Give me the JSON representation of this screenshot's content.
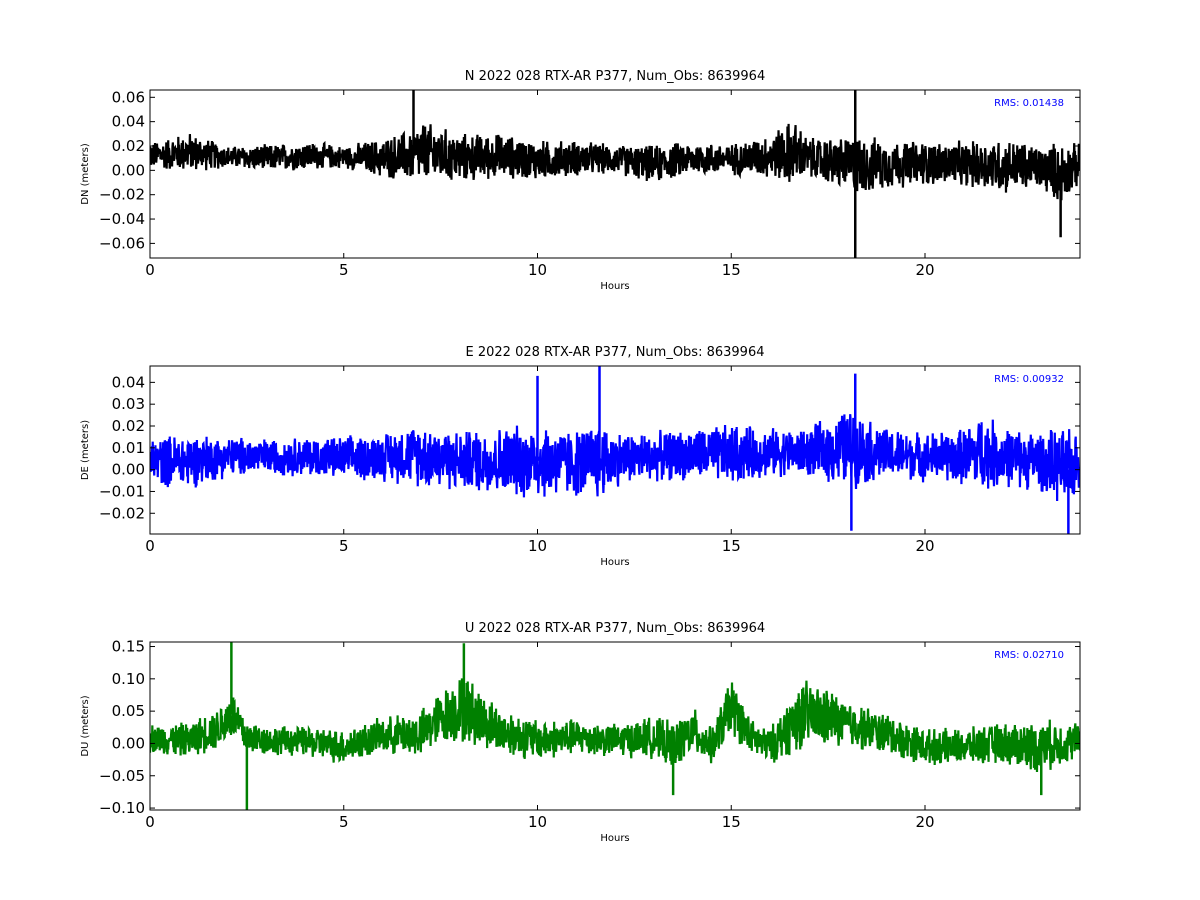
{
  "chart_data": [
    {
      "type": "line",
      "title": "N 2022 028 RTX-AR  P377, Num_Obs: 8639964",
      "xlabel": "Hours",
      "ylabel": "DN (meters)",
      "xlim": [
        0,
        24
      ],
      "ylim": [
        -0.072,
        0.066
      ],
      "xticks": [
        0,
        5,
        10,
        15,
        20
      ],
      "xtick_labels": [
        "0",
        "5",
        "10",
        "15",
        "20"
      ],
      "yticks": [
        -0.06,
        -0.04,
        -0.02,
        0.0,
        0.02,
        0.04,
        0.06
      ],
      "ytick_labels": [
        "−0.06",
        "−0.04",
        "−0.02",
        "0.00",
        "0.02",
        "0.04",
        "0.06"
      ],
      "series_color": "#000000",
      "annotation": "RMS:  0.01438",
      "annotation_color": "#0000ff",
      "grid": false,
      "series": [
        {
          "x": [
            0,
            1,
            2,
            3,
            4,
            5,
            6,
            6.8,
            7,
            8,
            9,
            10,
            11,
            12,
            13,
            14,
            15,
            16,
            16.6,
            17,
            18,
            18.2,
            19,
            20,
            21,
            22,
            23,
            23.5,
            24
          ],
          "y_center": [
            0.012,
            0.015,
            0.011,
            0.01,
            0.012,
            0.011,
            0.01,
            0.012,
            0.015,
            0.01,
            0.012,
            0.008,
            0.01,
            0.009,
            0.005,
            0.01,
            0.009,
            0.012,
            0.015,
            0.01,
            0.005,
            0.004,
            0.005,
            0.006,
            0.005,
            0.004,
            0.002,
            -0.002,
            0.005
          ],
          "y_amplitude": [
            0.012,
            0.018,
            0.01,
            0.012,
            0.013,
            0.01,
            0.018,
            0.024,
            0.028,
            0.022,
            0.02,
            0.018,
            0.016,
            0.013,
            0.017,
            0.015,
            0.014,
            0.02,
            0.03,
            0.018,
            0.025,
            0.028,
            0.022,
            0.02,
            0.02,
            0.025,
            0.02,
            0.028,
            0.018
          ],
          "spikes": [
            [
              6.8,
              0.066
            ],
            [
              18.2,
              0.066
            ],
            [
              18.2,
              -0.072
            ],
            [
              23.5,
              -0.055
            ]
          ]
        }
      ]
    },
    {
      "type": "line",
      "title": "E 2022 028 RTX-AR  P377, Num_Obs: 8639964",
      "xlabel": "Hours",
      "ylabel": "DE (meters)",
      "xlim": [
        0,
        24
      ],
      "ylim": [
        -0.0295,
        0.0475
      ],
      "xticks": [
        0,
        5,
        10,
        15,
        20
      ],
      "xtick_labels": [
        "0",
        "5",
        "10",
        "15",
        "20"
      ],
      "yticks": [
        -0.02,
        -0.01,
        0.0,
        0.01,
        0.02,
        0.03,
        0.04
      ],
      "ytick_labels": [
        "−0.02",
        "−0.01",
        "0.00",
        "0.01",
        "0.02",
        "0.03",
        "0.04"
      ],
      "series_color": "#0000ff",
      "annotation": "RMS:  0.00932",
      "annotation_color": "#0000ff",
      "grid": false,
      "series": [
        {
          "x": [
            0,
            1,
            2,
            3,
            4,
            5,
            6,
            7,
            8,
            9,
            10,
            11,
            11.6,
            12,
            13,
            14,
            15,
            16,
            17,
            18,
            19,
            20,
            21,
            21.5,
            22,
            23,
            23.7,
            24
          ],
          "y_center": [
            0.004,
            0.004,
            0.006,
            0.006,
            0.006,
            0.005,
            0.006,
            0.007,
            0.004,
            0.004,
            0.004,
            0.003,
            0.004,
            0.005,
            0.006,
            0.007,
            0.007,
            0.008,
            0.008,
            0.01,
            0.007,
            0.006,
            0.006,
            0.008,
            0.006,
            0.004,
            0.0,
            0.004
          ],
          "y_amplitude": [
            0.012,
            0.014,
            0.01,
            0.009,
            0.01,
            0.011,
            0.012,
            0.016,
            0.015,
            0.017,
            0.019,
            0.017,
            0.02,
            0.014,
            0.012,
            0.013,
            0.015,
            0.012,
            0.012,
            0.02,
            0.013,
            0.012,
            0.014,
            0.02,
            0.015,
            0.015,
            0.02,
            0.014
          ],
          "spikes": [
            [
              11.6,
              0.0475
            ],
            [
              10.0,
              0.043
            ],
            [
              18.2,
              0.044
            ],
            [
              23.7,
              -0.0295
            ],
            [
              18.1,
              -0.028
            ]
          ]
        }
      ]
    },
    {
      "type": "line",
      "title": "U 2022 028 RTX-AR  P377, Num_Obs: 8639964",
      "xlabel": "Hours",
      "ylabel": "DU (meters)",
      "xlim": [
        0,
        24
      ],
      "ylim": [
        -0.103,
        0.157
      ],
      "xticks": [
        0,
        5,
        10,
        15,
        20
      ],
      "xtick_labels": [
        "0",
        "5",
        "10",
        "15",
        "20"
      ],
      "yticks": [
        -0.1,
        -0.05,
        0.0,
        0.05,
        0.1,
        0.15
      ],
      "ytick_labels": [
        "−0.10",
        "−0.05",
        "0.00",
        "0.05",
        "0.10",
        "0.15"
      ],
      "series_color": "#008000",
      "annotation": "RMS:  0.02710",
      "annotation_color": "#0000ff",
      "grid": false,
      "series": [
        {
          "x": [
            0,
            1,
            1.8,
            2.1,
            2.5,
            3,
            4,
            5,
            6,
            7,
            7.5,
            8.1,
            9,
            10,
            11,
            12,
            13,
            13.5,
            14,
            14.5,
            15,
            15.5,
            16,
            16.8,
            17.5,
            18,
            19,
            20,
            21,
            22,
            23,
            24
          ],
          "y_center": [
            0.008,
            0.005,
            0.025,
            0.045,
            0.01,
            0.005,
            0.003,
            -0.005,
            0.012,
            0.015,
            0.04,
            0.055,
            0.02,
            0.005,
            0.01,
            0.005,
            0.01,
            -0.005,
            0.02,
            -0.005,
            0.06,
            0.01,
            -0.005,
            0.045,
            0.04,
            0.03,
            0.015,
            -0.005,
            -0.005,
            0.0,
            -0.005,
            0.005
          ],
          "y_amplitude": [
            0.025,
            0.03,
            0.035,
            0.045,
            0.03,
            0.025,
            0.025,
            0.03,
            0.03,
            0.04,
            0.045,
            0.06,
            0.04,
            0.035,
            0.03,
            0.028,
            0.035,
            0.04,
            0.04,
            0.03,
            0.05,
            0.03,
            0.03,
            0.06,
            0.05,
            0.04,
            0.035,
            0.03,
            0.03,
            0.035,
            0.045,
            0.03
          ],
          "spikes": [
            [
              2.1,
              0.157
            ],
            [
              2.5,
              -0.103
            ],
            [
              8.1,
              0.155
            ],
            [
              13.5,
              -0.08
            ],
            [
              23.0,
              -0.08
            ]
          ]
        }
      ]
    }
  ]
}
